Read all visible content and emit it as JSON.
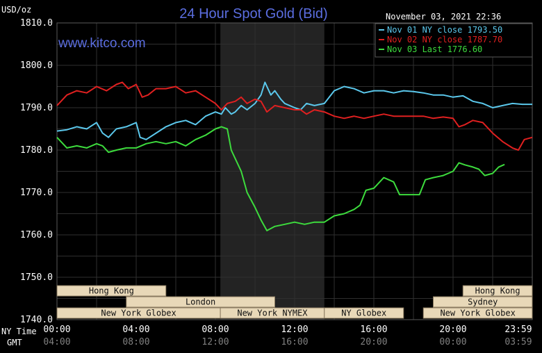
{
  "header": {
    "units": "USD/oz",
    "title": "24 Hour Spot Gold (Bid)",
    "timestamp": "November 03, 2021 22:36",
    "watermark": "www.kitco.com"
  },
  "colors": {
    "background": "#000000",
    "grid": "#2f2f2f",
    "title": "#5b6ee1",
    "session_band": "#232323",
    "market_box_fill": "#e8d8b8",
    "market_box_text": "#111111",
    "axis_text": "#ffffff",
    "secondary_axis_text": "#808080"
  },
  "chart_data": {
    "type": "line",
    "title": "24 Hour Spot Gold (Bid)",
    "ylabel": "USD/oz",
    "ylim": [
      1740,
      1810
    ],
    "yticks": [
      "1810.0",
      "1800.0",
      "1790.0",
      "1780.0",
      "1770.0",
      "1760.0",
      "1750.0",
      "1740.0"
    ],
    "xlim": [
      0,
      24
    ],
    "x_row_label": "NY Time",
    "x_tick_labels": [
      "00:00",
      "04:00",
      "08:00",
      "12:00",
      "16:00",
      "20:00",
      "23:59"
    ],
    "x2_row_label": "GMT",
    "x2_tick_labels": [
      "04:00",
      "08:00",
      "12:00",
      "16:00",
      "20:00",
      "00:00",
      "03:59"
    ],
    "grid": true,
    "legend_position": "top-right",
    "shaded_session": {
      "label": "New York NYMEX",
      "x_start": 8.25,
      "x_end": 13.5
    },
    "markets": [
      {
        "label": "Hong Kong",
        "row": 0,
        "x_start": 0,
        "x_end": 5.5
      },
      {
        "label": "Hong Kong",
        "row": 0,
        "x_start": 20.5,
        "x_end": 24
      },
      {
        "label": "London",
        "row": 1,
        "x_start": 3.5,
        "x_end": 11
      },
      {
        "label": "Sydney",
        "row": 1,
        "x_start": 19,
        "x_end": 24
      },
      {
        "label": "New York Globex",
        "row": 2,
        "x_start": 0,
        "x_end": 8.25
      },
      {
        "label": "New York NYMEX",
        "row": 2,
        "x_start": 8.25,
        "x_end": 13.5
      },
      {
        "label": "NY Globex",
        "row": 2,
        "x_start": 13.5,
        "x_end": 17.5
      },
      {
        "label": "New York Globex",
        "row": 2,
        "x_start": 18.5,
        "x_end": 24
      }
    ],
    "series": [
      {
        "name": "Nov 01 NY close 1793.50",
        "color": "#5bc8ec",
        "points": [
          [
            0,
            1784.5
          ],
          [
            0.5,
            1784.8
          ],
          [
            1,
            1785.5
          ],
          [
            1.5,
            1785
          ],
          [
            2,
            1786.5
          ],
          [
            2.3,
            1784
          ],
          [
            2.6,
            1783
          ],
          [
            3,
            1785
          ],
          [
            3.5,
            1785.5
          ],
          [
            4,
            1786.5
          ],
          [
            4.2,
            1783
          ],
          [
            4.5,
            1782.5
          ],
          [
            5,
            1784
          ],
          [
            5.5,
            1785.5
          ],
          [
            6,
            1786.5
          ],
          [
            6.5,
            1787
          ],
          [
            7,
            1786
          ],
          [
            7.5,
            1788
          ],
          [
            8,
            1789
          ],
          [
            8.3,
            1788.5
          ],
          [
            8.5,
            1790
          ],
          [
            8.8,
            1788.5
          ],
          [
            9,
            1789
          ],
          [
            9.3,
            1790.5
          ],
          [
            9.6,
            1789.5
          ],
          [
            10,
            1791
          ],
          [
            10.3,
            1793
          ],
          [
            10.5,
            1796
          ],
          [
            10.8,
            1793
          ],
          [
            11,
            1794
          ],
          [
            11.3,
            1792
          ],
          [
            11.5,
            1791
          ],
          [
            12,
            1790
          ],
          [
            12.3,
            1789.5
          ],
          [
            12.6,
            1791
          ],
          [
            13,
            1790.5
          ],
          [
            13.5,
            1791
          ],
          [
            14,
            1794
          ],
          [
            14.5,
            1795
          ],
          [
            15,
            1794.5
          ],
          [
            15.5,
            1793.5
          ],
          [
            16,
            1794
          ],
          [
            16.5,
            1794
          ],
          [
            17,
            1793.5
          ],
          [
            17.5,
            1794
          ],
          [
            18,
            1793.8
          ],
          [
            18.5,
            1793.5
          ],
          [
            19,
            1793
          ],
          [
            19.5,
            1793
          ],
          [
            20,
            1792.5
          ],
          [
            20.5,
            1792.8
          ],
          [
            21,
            1791.5
          ],
          [
            21.5,
            1791
          ],
          [
            22,
            1790
          ],
          [
            22.5,
            1790.5
          ],
          [
            23,
            1791
          ],
          [
            23.5,
            1790.8
          ],
          [
            24,
            1790.8
          ]
        ]
      },
      {
        "name": "Nov 02 NY close 1787.70",
        "color": "#e02020",
        "points": [
          [
            0,
            1790.5
          ],
          [
            0.5,
            1793
          ],
          [
            1,
            1794
          ],
          [
            1.5,
            1793.5
          ],
          [
            2,
            1795
          ],
          [
            2.5,
            1794
          ],
          [
            3,
            1795.5
          ],
          [
            3.3,
            1796
          ],
          [
            3.6,
            1794.5
          ],
          [
            4,
            1795.5
          ],
          [
            4.3,
            1792.5
          ],
          [
            4.6,
            1793
          ],
          [
            5,
            1794.5
          ],
          [
            5.5,
            1794.5
          ],
          [
            6,
            1795
          ],
          [
            6.5,
            1793.5
          ],
          [
            7,
            1794
          ],
          [
            7.5,
            1792.5
          ],
          [
            8,
            1791
          ],
          [
            8.3,
            1789.5
          ],
          [
            8.6,
            1791
          ],
          [
            9,
            1791.5
          ],
          [
            9.3,
            1792.5
          ],
          [
            9.6,
            1791
          ],
          [
            10,
            1792
          ],
          [
            10.3,
            1791.5
          ],
          [
            10.6,
            1789
          ],
          [
            11,
            1790.5
          ],
          [
            11.5,
            1790
          ],
          [
            12,
            1789.5
          ],
          [
            12.3,
            1789.5
          ],
          [
            12.6,
            1788.5
          ],
          [
            13,
            1789.5
          ],
          [
            13.5,
            1789
          ],
          [
            14,
            1788
          ],
          [
            14.5,
            1787.5
          ],
          [
            15,
            1788
          ],
          [
            15.5,
            1787.5
          ],
          [
            16,
            1788
          ],
          [
            16.5,
            1788.5
          ],
          [
            17,
            1788
          ],
          [
            17.5,
            1788
          ],
          [
            18,
            1788
          ],
          [
            18.5,
            1788
          ],
          [
            19,
            1787.5
          ],
          [
            19.5,
            1787.8
          ],
          [
            20,
            1787.5
          ],
          [
            20.3,
            1785.5
          ],
          [
            20.6,
            1786
          ],
          [
            21,
            1787
          ],
          [
            21.5,
            1786.5
          ],
          [
            22,
            1784
          ],
          [
            22.5,
            1782
          ],
          [
            23,
            1780.5
          ],
          [
            23.3,
            1780
          ],
          [
            23.6,
            1782.5
          ],
          [
            24,
            1783
          ]
        ]
      },
      {
        "name": "Nov 03 Last 1776.60",
        "color": "#3ddc3d",
        "points": [
          [
            0,
            1783
          ],
          [
            0.5,
            1780.5
          ],
          [
            1,
            1781
          ],
          [
            1.5,
            1780.5
          ],
          [
            2,
            1781.5
          ],
          [
            2.3,
            1781
          ],
          [
            2.6,
            1779.5
          ],
          [
            3,
            1780
          ],
          [
            3.5,
            1780.5
          ],
          [
            4,
            1780.5
          ],
          [
            4.5,
            1781.5
          ],
          [
            5,
            1782
          ],
          [
            5.5,
            1781.5
          ],
          [
            6,
            1782
          ],
          [
            6.5,
            1781
          ],
          [
            7,
            1782.5
          ],
          [
            7.5,
            1783.5
          ],
          [
            8,
            1785
          ],
          [
            8.3,
            1785.5
          ],
          [
            8.6,
            1785
          ],
          [
            8.8,
            1780
          ],
          [
            9,
            1778
          ],
          [
            9.3,
            1775
          ],
          [
            9.6,
            1770
          ],
          [
            10,
            1766.5
          ],
          [
            10.3,
            1763.5
          ],
          [
            10.6,
            1761
          ],
          [
            11,
            1762
          ],
          [
            11.5,
            1762.5
          ],
          [
            12,
            1763
          ],
          [
            12.5,
            1762.5
          ],
          [
            13,
            1763
          ],
          [
            13.5,
            1763
          ],
          [
            14,
            1764.5
          ],
          [
            14.5,
            1765
          ],
          [
            15,
            1766
          ],
          [
            15.3,
            1767
          ],
          [
            15.6,
            1770.5
          ],
          [
            16,
            1771
          ],
          [
            16.5,
            1773.5
          ],
          [
            17,
            1772.5
          ],
          [
            17.3,
            1769.5
          ],
          [
            17.6,
            1769.5
          ],
          [
            18,
            1769.5
          ],
          [
            18.3,
            1769.5
          ],
          [
            18.6,
            1773
          ],
          [
            19,
            1773.5
          ],
          [
            19.5,
            1774
          ],
          [
            20,
            1775
          ],
          [
            20.3,
            1777
          ],
          [
            20.6,
            1776.5
          ],
          [
            21,
            1776
          ],
          [
            21.3,
            1775.5
          ],
          [
            21.6,
            1774
          ],
          [
            22,
            1774.5
          ],
          [
            22.3,
            1776
          ],
          [
            22.6,
            1776.6
          ]
        ]
      }
    ]
  }
}
